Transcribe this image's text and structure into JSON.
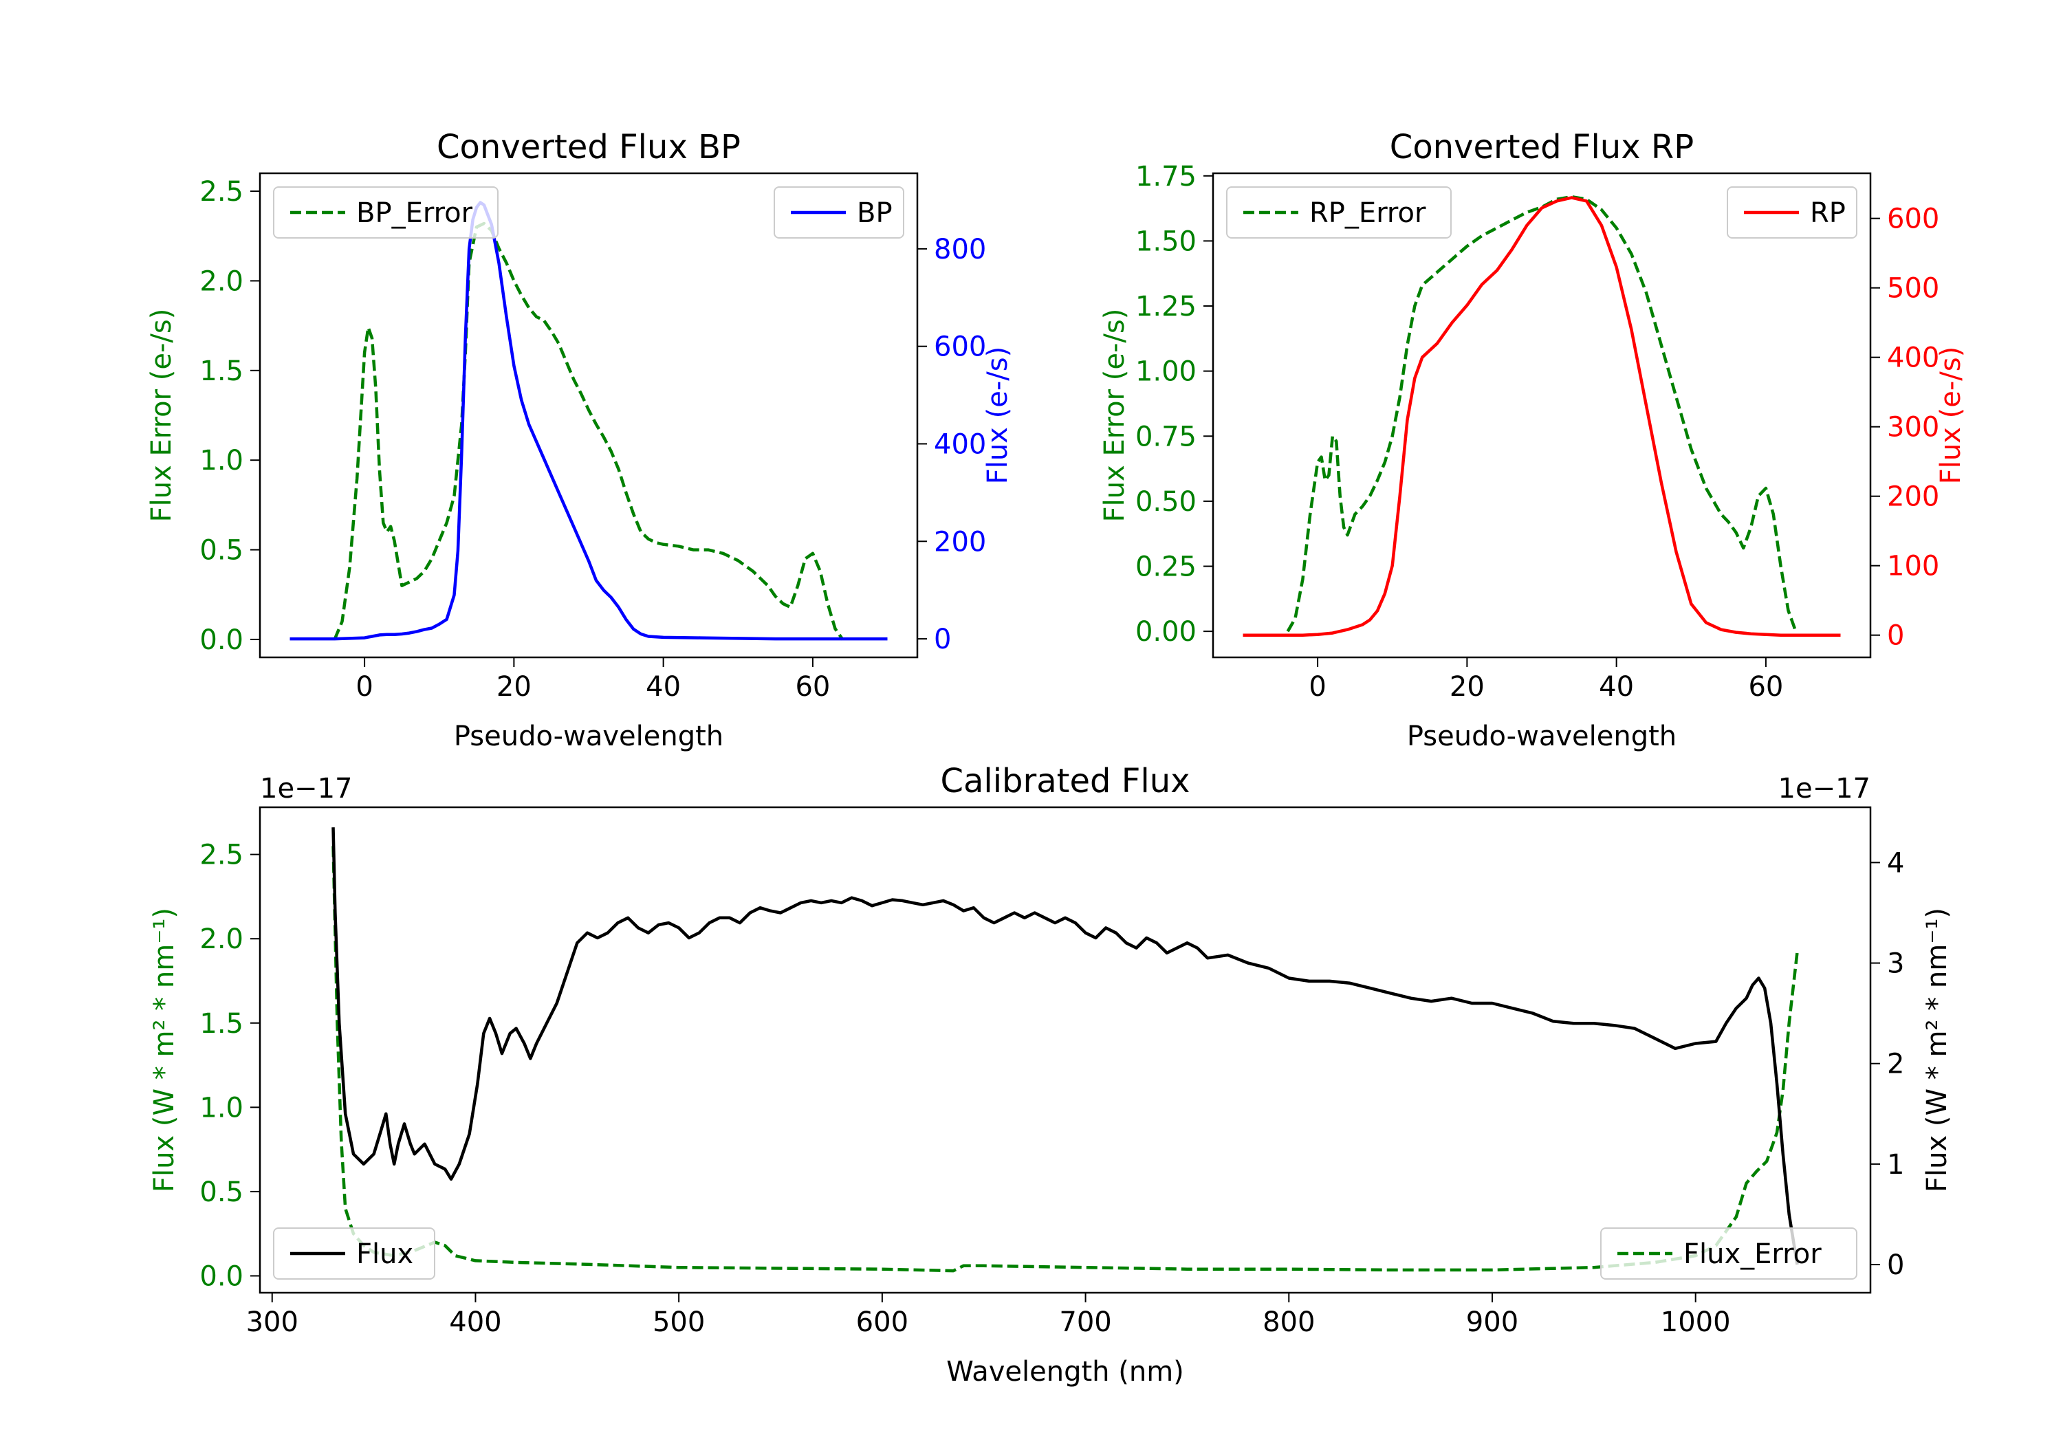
{
  "figure": {
    "background": "#ffffff"
  },
  "colors": {
    "bp": "#0000ff",
    "rp": "#ff0000",
    "error": "#008000",
    "flux": "#000000"
  },
  "chart_data": [
    {
      "type": "line",
      "title": "Converted Flux BP",
      "xlabel": "Pseudo-wavelength",
      "ylabel_left": "Flux Error (e-/s)",
      "ylabel_right": "Flux (e-/s)",
      "xlim": [
        -14,
        74
      ],
      "ylim_left": [
        -0.1,
        2.6
      ],
      "ylim_right": [
        -38,
        955
      ],
      "xticks": [
        0,
        20,
        40,
        60
      ],
      "xtick_labels": [
        "0",
        "20",
        "40",
        "60"
      ],
      "yticks_left": [
        0,
        0.5,
        1,
        1.5,
        2,
        2.5
      ],
      "ytick_labels_left": [
        "0.0",
        "0.5",
        "1.0",
        "1.5",
        "2.0",
        "2.5"
      ],
      "yticks_right": [
        0,
        200,
        400,
        600,
        800
      ],
      "ytick_labels_right": [
        "0",
        "200",
        "400",
        "600",
        "800"
      ],
      "left_axis_color": "#008000",
      "right_axis_color": "#0000ff",
      "legend_left": {
        "position": "upper-left",
        "label": "BP_Error",
        "style": "dashed",
        "color": "#008000"
      },
      "legend_right": {
        "position": "upper-right",
        "label": "BP",
        "style": "solid",
        "color": "#0000ff"
      },
      "series": [
        {
          "name": "BP_Error",
          "axis": "left",
          "style": "dashed",
          "color": "#008000",
          "x": [
            -4,
            -3,
            -2,
            -1,
            0,
            0.5,
            1,
            1.5,
            2,
            2.5,
            3,
            3.5,
            4,
            5,
            6,
            7,
            8,
            9,
            10,
            11,
            12,
            13,
            13.5,
            14,
            15,
            16,
            17,
            18,
            19,
            20,
            21,
            22,
            23,
            24,
            25,
            26,
            27,
            28,
            29,
            30,
            31,
            32,
            33,
            34,
            35,
            36,
            37,
            38,
            39,
            40,
            42,
            44,
            46,
            48,
            50,
            52,
            54,
            55,
            56,
            57,
            58,
            59,
            60,
            61,
            62,
            63,
            64
          ],
          "y": [
            0.0,
            0.1,
            0.4,
            0.9,
            1.6,
            1.74,
            1.68,
            1.4,
            0.95,
            0.65,
            0.6,
            0.63,
            0.55,
            0.3,
            0.32,
            0.34,
            0.38,
            0.45,
            0.55,
            0.65,
            0.8,
            1.2,
            1.6,
            2.1,
            2.3,
            2.32,
            2.28,
            2.18,
            2.1,
            2.0,
            1.92,
            1.85,
            1.8,
            1.78,
            1.72,
            1.65,
            1.55,
            1.45,
            1.37,
            1.28,
            1.2,
            1.13,
            1.05,
            0.95,
            0.82,
            0.7,
            0.6,
            0.56,
            0.54,
            0.53,
            0.52,
            0.5,
            0.5,
            0.48,
            0.44,
            0.38,
            0.3,
            0.24,
            0.2,
            0.18,
            0.3,
            0.45,
            0.48,
            0.38,
            0.2,
            0.06,
            0.0
          ]
        },
        {
          "name": "BP",
          "axis": "right",
          "style": "solid",
          "color": "#0000ff",
          "x": [
            -10,
            -8,
            -6,
            -4,
            -2,
            0,
            1,
            2,
            3,
            4,
            5,
            6,
            7,
            8,
            9,
            10,
            11,
            12,
            12.5,
            13,
            13.5,
            14,
            14.5,
            15,
            15.5,
            16,
            16.5,
            17,
            18,
            19,
            20,
            21,
            22,
            24,
            26,
            28,
            30,
            31,
            32,
            33,
            34,
            35,
            36,
            37,
            38,
            40,
            45,
            50,
            55,
            60,
            65,
            70
          ],
          "y": [
            0,
            0,
            0,
            0,
            1,
            2,
            5,
            8,
            9,
            9,
            10,
            12,
            15,
            19,
            22,
            30,
            40,
            90,
            180,
            380,
            620,
            800,
            860,
            885,
            895,
            890,
            870,
            850,
            770,
            660,
            560,
            490,
            440,
            370,
            300,
            230,
            160,
            120,
            100,
            85,
            65,
            40,
            20,
            10,
            5,
            3,
            2,
            1,
            0,
            0,
            0,
            0
          ]
        }
      ]
    },
    {
      "type": "line",
      "title": "Converted Flux RP",
      "xlabel": "Pseudo-wavelength",
      "ylabel_left": "Flux Error (e-/s)",
      "ylabel_right": "Flux (e-/s)",
      "xlim": [
        -14,
        74
      ],
      "ylim_left": [
        -0.1,
        1.76
      ],
      "ylim_right": [
        -32,
        665
      ],
      "xticks": [
        0,
        20,
        40,
        60
      ],
      "xtick_labels": [
        "0",
        "20",
        "40",
        "60"
      ],
      "yticks_left": [
        0,
        0.25,
        0.5,
        0.75,
        1.0,
        1.25,
        1.5,
        1.75
      ],
      "ytick_labels_left": [
        "0.00",
        "0.25",
        "0.50",
        "0.75",
        "1.00",
        "1.25",
        "1.50",
        "1.75"
      ],
      "yticks_right": [
        0,
        100,
        200,
        300,
        400,
        500,
        600
      ],
      "ytick_labels_right": [
        "0",
        "100",
        "200",
        "300",
        "400",
        "500",
        "600"
      ],
      "left_axis_color": "#008000",
      "right_axis_color": "#ff0000",
      "legend_left": {
        "position": "upper-left",
        "label": "RP_Error",
        "style": "dashed",
        "color": "#008000"
      },
      "legend_right": {
        "position": "upper-right",
        "label": "RP",
        "style": "solid",
        "color": "#ff0000"
      },
      "series": [
        {
          "name": "RP_Error",
          "axis": "left",
          "style": "dashed",
          "color": "#008000",
          "x": [
            -4,
            -3,
            -2,
            -1,
            0,
            0.5,
            1,
            1.5,
            2,
            2.5,
            3,
            3.5,
            4,
            5,
            6,
            7,
            8,
            9,
            10,
            11,
            12,
            13,
            14,
            16,
            18,
            20,
            22,
            24,
            26,
            28,
            30,
            32,
            34,
            36,
            38,
            40,
            42,
            44,
            46,
            48,
            50,
            52,
            54,
            55,
            56,
            57,
            58,
            59,
            60,
            61,
            62,
            63,
            64
          ],
          "y": [
            0.0,
            0.05,
            0.2,
            0.45,
            0.65,
            0.67,
            0.58,
            0.6,
            0.75,
            0.73,
            0.52,
            0.4,
            0.37,
            0.45,
            0.48,
            0.52,
            0.58,
            0.65,
            0.75,
            0.9,
            1.1,
            1.25,
            1.33,
            1.38,
            1.43,
            1.48,
            1.52,
            1.55,
            1.58,
            1.61,
            1.63,
            1.66,
            1.67,
            1.66,
            1.62,
            1.55,
            1.45,
            1.3,
            1.1,
            0.9,
            0.7,
            0.55,
            0.45,
            0.42,
            0.38,
            0.32,
            0.4,
            0.52,
            0.55,
            0.45,
            0.25,
            0.08,
            0.0
          ]
        },
        {
          "name": "RP",
          "axis": "right",
          "style": "solid",
          "color": "#ff0000",
          "x": [
            -10,
            -8,
            -6,
            -4,
            -2,
            0,
            2,
            4,
            6,
            7,
            8,
            9,
            10,
            11,
            12,
            13,
            14,
            15,
            16,
            18,
            20,
            22,
            24,
            26,
            28,
            30,
            32,
            34,
            36,
            38,
            40,
            42,
            44,
            46,
            48,
            50,
            52,
            54,
            56,
            58,
            60,
            62,
            64,
            66,
            68,
            70
          ],
          "y": [
            0,
            0,
            0,
            0,
            0,
            1,
            3,
            8,
            15,
            22,
            35,
            60,
            100,
            200,
            310,
            370,
            400,
            410,
            420,
            450,
            475,
            505,
            525,
            555,
            590,
            615,
            625,
            630,
            625,
            590,
            530,
            440,
            330,
            220,
            120,
            45,
            18,
            8,
            4,
            2,
            1,
            0,
            0,
            0,
            0,
            0
          ]
        }
      ]
    },
    {
      "type": "line",
      "title": "Calibrated Flux",
      "xlabel": "Wavelength (nm)",
      "ylabel_left": "Flux (W * m² * nm⁻¹)",
      "ylabel_right": "Flux (W * m² * nm⁻¹)",
      "offset_left": "1e−17",
      "offset_right": "1e−17",
      "xlim": [
        294,
        1086
      ],
      "ylim_left": [
        -0.1,
        2.78
      ],
      "ylim_right": [
        -0.28,
        4.55
      ],
      "xticks": [
        300,
        400,
        500,
        600,
        700,
        800,
        900,
        1000
      ],
      "xtick_labels": [
        "300",
        "400",
        "500",
        "600",
        "700",
        "800",
        "900",
        "1000"
      ],
      "yticks_left": [
        0,
        0.5,
        1.0,
        1.5,
        2.0,
        2.5
      ],
      "ytick_labels_left": [
        "0.0",
        "0.5",
        "1.0",
        "1.5",
        "2.0",
        "2.5"
      ],
      "yticks_right": [
        0,
        1,
        2,
        3,
        4
      ],
      "ytick_labels_right": [
        "0",
        "1",
        "2",
        "3",
        "4"
      ],
      "left_axis_color": "#008000",
      "right_axis_color": "#000000",
      "legend_left": {
        "position": "lower-left",
        "label": "Flux",
        "style": "solid",
        "color": "#000000"
      },
      "legend_right": {
        "position": "lower-right",
        "label": "Flux_Error",
        "style": "dashed",
        "color": "#008000"
      },
      "series": [
        {
          "name": "Flux_Error",
          "axis": "left",
          "style": "dashed",
          "color": "#008000",
          "x": [
            330,
            332,
            334,
            336,
            340,
            345,
            350,
            360,
            370,
            380,
            385,
            390,
            400,
            420,
            450,
            500,
            550,
            600,
            635,
            640,
            650,
            700,
            750,
            800,
            850,
            900,
            950,
            980,
            1000,
            1010,
            1020,
            1025,
            1030,
            1035,
            1040,
            1043,
            1046,
            1050
          ],
          "y": [
            2.55,
            1.5,
            0.8,
            0.4,
            0.25,
            0.18,
            0.14,
            0.12,
            0.15,
            0.2,
            0.18,
            0.12,
            0.09,
            0.08,
            0.07,
            0.05,
            0.045,
            0.04,
            0.03,
            0.06,
            0.06,
            0.05,
            0.04,
            0.04,
            0.035,
            0.035,
            0.05,
            0.08,
            0.12,
            0.18,
            0.35,
            0.55,
            0.62,
            0.68,
            0.85,
            1.1,
            1.5,
            1.92
          ]
        },
        {
          "name": "Flux",
          "axis": "right",
          "style": "solid",
          "color": "#000000",
          "x": [
            330,
            331,
            333,
            336,
            340,
            345,
            350,
            353,
            356,
            358,
            360,
            362,
            365,
            368,
            370,
            375,
            380,
            385,
            388,
            392,
            397,
            401,
            404,
            407,
            410,
            413,
            417,
            420,
            424,
            427,
            430,
            435,
            440,
            445,
            450,
            455,
            460,
            465,
            470,
            475,
            480,
            485,
            490,
            495,
            500,
            505,
            510,
            515,
            520,
            525,
            530,
            535,
            540,
            545,
            550,
            555,
            560,
            565,
            570,
            575,
            580,
            585,
            590,
            595,
            600,
            605,
            610,
            615,
            620,
            625,
            630,
            635,
            640,
            645,
            650,
            655,
            660,
            665,
            670,
            675,
            680,
            685,
            690,
            695,
            700,
            705,
            710,
            715,
            720,
            725,
            730,
            735,
            740,
            745,
            750,
            755,
            760,
            770,
            780,
            790,
            800,
            810,
            820,
            830,
            840,
            850,
            860,
            870,
            880,
            890,
            900,
            910,
            920,
            930,
            940,
            950,
            960,
            970,
            980,
            990,
            1000,
            1010,
            1015,
            1020,
            1025,
            1028,
            1031,
            1034,
            1037,
            1040,
            1043,
            1046,
            1050
          ],
          "y": [
            4.35,
            3.5,
            2.4,
            1.5,
            1.1,
            1.0,
            1.1,
            1.3,
            1.5,
            1.2,
            1.0,
            1.2,
            1.4,
            1.2,
            1.1,
            1.2,
            1.0,
            0.95,
            0.85,
            1.0,
            1.3,
            1.8,
            2.3,
            2.45,
            2.3,
            2.1,
            2.3,
            2.35,
            2.2,
            2.05,
            2.2,
            2.4,
            2.6,
            2.9,
            3.2,
            3.3,
            3.25,
            3.3,
            3.4,
            3.45,
            3.35,
            3.3,
            3.38,
            3.4,
            3.35,
            3.25,
            3.3,
            3.4,
            3.45,
            3.45,
            3.4,
            3.5,
            3.55,
            3.52,
            3.5,
            3.55,
            3.6,
            3.62,
            3.6,
            3.62,
            3.6,
            3.65,
            3.62,
            3.57,
            3.6,
            3.63,
            3.62,
            3.6,
            3.58,
            3.6,
            3.62,
            3.58,
            3.52,
            3.55,
            3.45,
            3.4,
            3.45,
            3.5,
            3.45,
            3.5,
            3.45,
            3.4,
            3.45,
            3.4,
            3.3,
            3.25,
            3.35,
            3.3,
            3.2,
            3.15,
            3.25,
            3.2,
            3.1,
            3.15,
            3.2,
            3.15,
            3.05,
            3.08,
            3.0,
            2.95,
            2.85,
            2.82,
            2.82,
            2.8,
            2.75,
            2.7,
            2.65,
            2.62,
            2.65,
            2.6,
            2.6,
            2.55,
            2.5,
            2.42,
            2.4,
            2.4,
            2.38,
            2.35,
            2.25,
            2.15,
            2.2,
            2.22,
            2.4,
            2.55,
            2.65,
            2.78,
            2.85,
            2.75,
            2.4,
            1.8,
            1.1,
            0.5,
            0.0
          ]
        }
      ]
    }
  ]
}
